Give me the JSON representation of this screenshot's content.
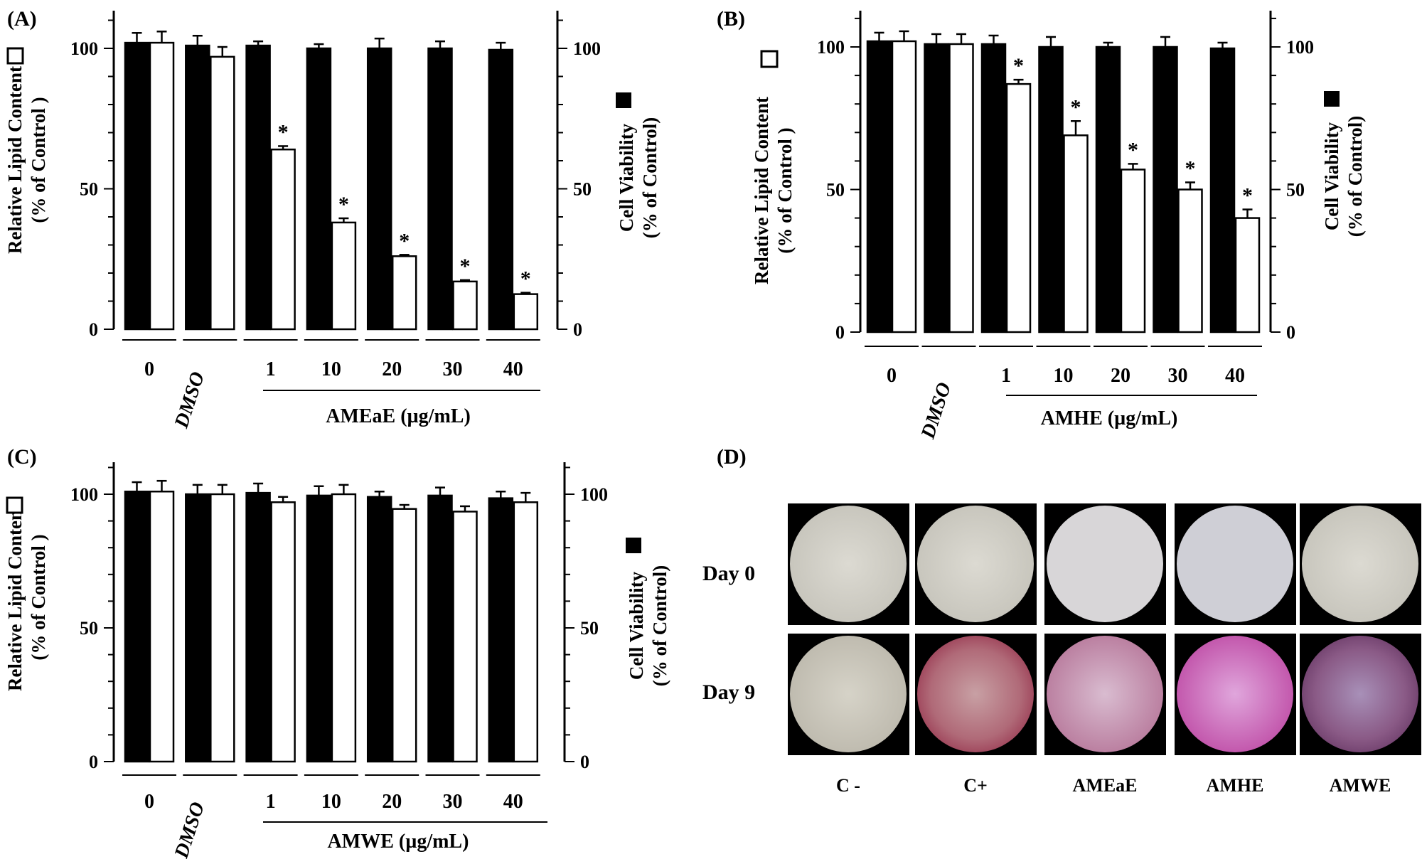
{
  "chart_data": [
    {
      "type": "bar",
      "panel_label": "(A)",
      "categories": [
        "0",
        "DMSO",
        "1",
        "10",
        "20",
        "30",
        "40"
      ],
      "xlabel": "AMEaE (µg/mL)",
      "ylabel_left": [
        "Relative Lipid Content",
        "(% of Control )"
      ],
      "ylabel_right": [
        "Cell Viability",
        "(% of Control)"
      ],
      "ylim": [
        0,
        100
      ],
      "yticks": [
        "0",
        "50",
        "100"
      ],
      "series": [
        {
          "name": "Cell Viability",
          "fill": "#000000",
          "values": [
            102,
            101,
            101,
            100,
            100,
            100,
            99.5
          ],
          "errors": [
            3.5,
            3.5,
            1.5,
            1.5,
            3.5,
            2.5,
            2.5
          ]
        },
        {
          "name": "Relative Lipid Content",
          "fill": "#ffffff",
          "values": [
            102,
            97,
            64,
            38,
            26,
            17,
            12.5
          ],
          "errors": [
            4,
            3.5,
            1.2,
            1.5,
            0.5,
            0.5,
            0.5
          ]
        }
      ],
      "significance": [
        "",
        "",
        "*",
        "*",
        "*",
        "*",
        "*"
      ]
    },
    {
      "type": "bar",
      "panel_label": "(B)",
      "categories": [
        "0",
        "DMSO",
        "1",
        "10",
        "20",
        "30",
        "40"
      ],
      "xlabel": "AMHE (µg/mL)",
      "ylabel_left": [
        "Relative Lipid Content",
        "(% of Control )"
      ],
      "ylabel_right": [
        "Cell Viability",
        "(% of Control)"
      ],
      "ylim": [
        0,
        100
      ],
      "yticks": [
        "0",
        "50",
        "100"
      ],
      "series": [
        {
          "name": "Cell Viability",
          "fill": "#000000",
          "values": [
            102,
            101,
            101,
            100,
            100,
            100,
            99.5
          ],
          "errors": [
            3,
            3.5,
            3,
            3.5,
            1.5,
            3.5,
            2
          ]
        },
        {
          "name": "Relative Lipid Content",
          "fill": "#ffffff",
          "values": [
            102,
            101,
            87,
            69,
            57,
            50,
            40
          ],
          "errors": [
            3.5,
            3.5,
            1.5,
            5,
            2,
            2.5,
            3
          ]
        }
      ],
      "significance": [
        "",
        "",
        "*",
        "*",
        "*",
        "*",
        "*"
      ]
    },
    {
      "type": "bar",
      "panel_label": "(C)",
      "categories": [
        "0",
        "DMSO",
        "1",
        "10",
        "20",
        "30",
        "40"
      ],
      "xlabel": "AMWE (µg/mL)",
      "ylabel_left": [
        "Relative Lipid Content",
        "(% of Control )"
      ],
      "ylabel_right": [
        "Cell Viability",
        "(% of Control)"
      ],
      "ylim": [
        0,
        100
      ],
      "yticks": [
        "0",
        "50",
        "100"
      ],
      "series": [
        {
          "name": "Cell Viability",
          "fill": "#000000",
          "values": [
            101,
            100,
            100.5,
            99.5,
            99,
            99.5,
            98.5
          ],
          "errors": [
            3.5,
            3.5,
            3.5,
            3.5,
            2,
            3,
            2.5
          ]
        },
        {
          "name": "Relative Lipid Content",
          "fill": "#ffffff",
          "values": [
            101,
            100,
            97,
            100,
            94.5,
            93.5,
            97
          ],
          "errors": [
            4,
            3.5,
            2,
            3.5,
            1.5,
            2,
            3.5
          ]
        }
      ],
      "significance": [
        "",
        "",
        "",
        "",
        "",
        "",
        ""
      ]
    }
  ],
  "panel_d": {
    "panel_label": "(D)",
    "row_labels": [
      "Day 0",
      "Day 9"
    ],
    "column_labels": [
      "C -",
      "C+",
      "AMEaE",
      "AMHE",
      "AMWE"
    ]
  },
  "colors": {
    "bar_filled": "#000000",
    "bar_open": "#ffffff",
    "well_day0": "#d2d0c8",
    "stain_red": "#a8324a",
    "stain_magenta": "#c04a9a",
    "stain_purple": "#6a3a7a"
  }
}
